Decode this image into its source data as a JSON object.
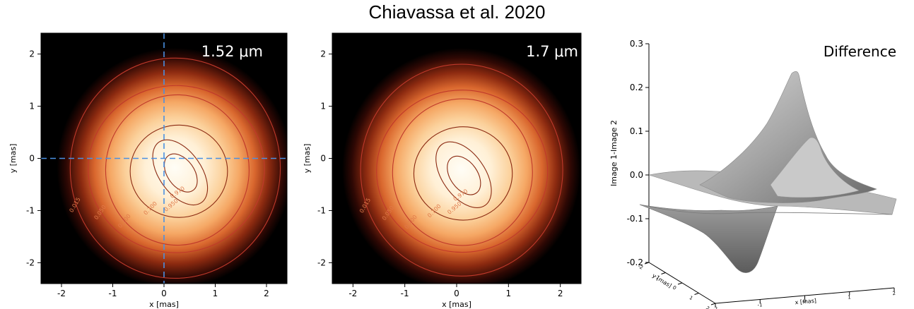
{
  "title": "Chiavassa et al. 2020",
  "chart_data": [
    {
      "type": "heatmap",
      "label": "1.52 μm",
      "xlabel": "x [mas]",
      "ylabel": "y [mas]",
      "xlim": [
        -2.4,
        2.4
      ],
      "ylim": [
        -2.4,
        2.4
      ],
      "xticks": [
        -2,
        -1,
        0,
        1,
        2
      ],
      "yticks": [
        -2,
        -1,
        0,
        1,
        2
      ],
      "colormap": "black-red-orange-white",
      "crosshair": {
        "x": 0,
        "y": 0,
        "color": "#4a90e2"
      },
      "peak": {
        "x": 0.35,
        "y": -0.3
      },
      "contours": [
        {
          "level": "0.015",
          "radius_mas": 2.05
        },
        {
          "level": "0.050",
          "radius_mas": 1.72
        },
        {
          "level": "0.200",
          "radius_mas": 1.4
        },
        {
          "level": "0.700",
          "radius_mas": 0.95
        },
        {
          "level": "0.950",
          "radius_mas": 0.55
        },
        {
          "level": "0.970",
          "radius_mas": 0.35
        }
      ]
    },
    {
      "type": "heatmap",
      "label": "1.7 μm",
      "xlabel": "x [mas]",
      "ylabel": "y [mas]",
      "xlim": [
        -2.4,
        2.4
      ],
      "ylim": [
        -2.4,
        2.4
      ],
      "xticks": [
        -2,
        -1,
        0,
        1,
        2
      ],
      "yticks": [
        -2,
        -1,
        0,
        1,
        2
      ],
      "colormap": "black-red-orange-white",
      "peak": {
        "x": 0.15,
        "y": -0.35
      },
      "contours": [
        {
          "level": "0.015",
          "radius_mas": 1.95
        },
        {
          "level": "0.050",
          "radius_mas": 1.65
        },
        {
          "level": "0.200",
          "radius_mas": 1.35
        },
        {
          "level": "0.700",
          "radius_mas": 0.95
        },
        {
          "level": "0.950",
          "radius_mas": 0.55
        },
        {
          "level": "0.970",
          "radius_mas": 0.35
        }
      ]
    },
    {
      "type": "surface",
      "label": "Difference",
      "zlabel": "Image 1-Image 2",
      "xlabel": "x [mas]",
      "ylabel": "y [mas]",
      "zlim": [
        -0.2,
        0.3
      ],
      "zticks": [
        "-0.2",
        "-0.1",
        "0.0",
        "0.1",
        "0.2",
        "0.3"
      ],
      "xticks": [
        "-2",
        "-1",
        "0",
        "1",
        "2"
      ],
      "yticks": [
        "-2",
        "-1",
        "0",
        "1",
        "2"
      ],
      "peak_max": 0.23,
      "trough_min": -0.2,
      "color": "#9a9a9a"
    }
  ]
}
